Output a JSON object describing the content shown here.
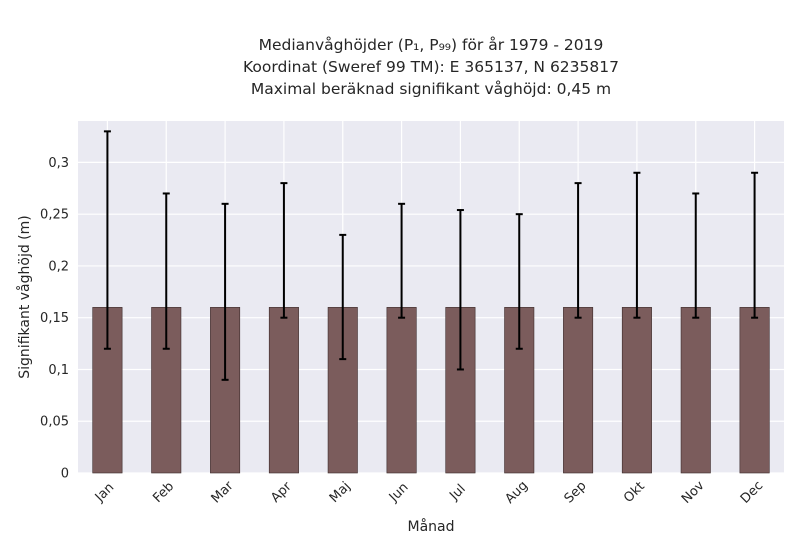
{
  "chart_data": {
    "type": "bar",
    "title_lines": [
      "Medianvåghöjder (P₁, P₉₉) för år 1979 - 2019",
      "Koordinat (Sweref 99 TM): E 365137, N 6235817",
      "Maximal beräknad signifikant våghöjd: 0,45 m"
    ],
    "xlabel": "Månad",
    "ylabel": "Signifikant våghöjd (m)",
    "categories": [
      "Jan",
      "Feb",
      "Mar",
      "Apr",
      "Maj",
      "Jun",
      "Jul",
      "Aug",
      "Sep",
      "Okt",
      "Nov",
      "Dec"
    ],
    "series": [
      {
        "values": [
          0.16,
          0.16,
          0.16,
          0.16,
          0.16,
          0.16,
          0.16,
          0.16,
          0.16,
          0.16,
          0.16,
          0.16
        ],
        "error_low": [
          0.12,
          0.12,
          0.09,
          0.15,
          0.11,
          0.15,
          0.1,
          0.12,
          0.15,
          0.15,
          0.15,
          0.15
        ],
        "error_high": [
          0.33,
          0.27,
          0.26,
          0.28,
          0.23,
          0.26,
          0.254,
          0.25,
          0.28,
          0.29,
          0.27,
          0.29
        ]
      }
    ],
    "ylim": [
      0,
      0.34
    ],
    "yticks": [
      0,
      0.05,
      0.1,
      0.15,
      0.2,
      0.25,
      0.3
    ],
    "ytick_labels": [
      "0",
      "0,05",
      "0,1",
      "0,15",
      "0,2",
      "0,25",
      "0,3"
    ],
    "grid": true,
    "colors": {
      "bar": "#7b5c5c",
      "bar_edge": "#3a2a2a",
      "error": "#000000",
      "plot_bg": "#eaeaf2",
      "grid": "#ffffff"
    }
  }
}
